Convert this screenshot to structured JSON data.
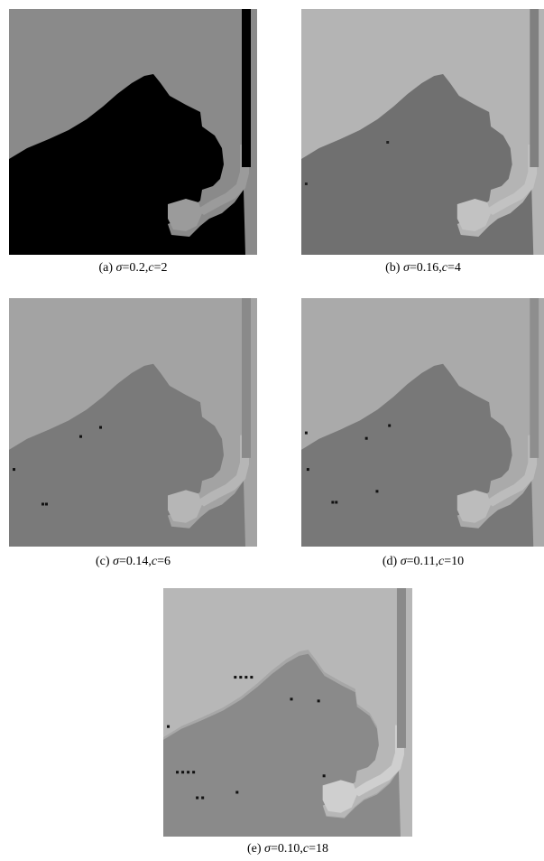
{
  "figure": {
    "panels": [
      {
        "id": "a",
        "label": "(a)",
        "sigma_symbol": "σ",
        "sigma_text": "=0.2,",
        "c_symbol": "c",
        "c_text": "=2",
        "colors": {
          "bg": "#8a8a8a",
          "fg": "#000000",
          "pot": "#9b9b9b",
          "pole": "#000000",
          "spots": "#000000"
        }
      },
      {
        "id": "b",
        "label": "(b)",
        "sigma_symbol": "σ",
        "sigma_text": "=0.16,",
        "c_symbol": "c",
        "c_text": "=4",
        "colors": {
          "bg": "#b4b4b4",
          "fg": "#707070",
          "pot": "#c2c2c2",
          "pole": "#808080",
          "spots": "#202020"
        }
      },
      {
        "id": "c",
        "label": "(c)",
        "sigma_symbol": "σ",
        "sigma_text": "=0.14,",
        "c_symbol": "c",
        "c_text": "=6",
        "colors": {
          "bg": "#a3a3a3",
          "fg": "#7a7a7a",
          "pot": "#b6b6b6",
          "pole": "#8a8a8a",
          "spots": "#111111"
        }
      },
      {
        "id": "d",
        "label": "(d)",
        "sigma_symbol": "σ",
        "sigma_text": "=0.11,",
        "c_symbol": "c",
        "c_text": "=10",
        "colors": {
          "bg": "#aaaaaa",
          "fg": "#787878",
          "pot": "#bcbcbc",
          "pole": "#8e8e8e",
          "spots": "#111111"
        }
      },
      {
        "id": "e",
        "label": "(e)",
        "sigma_symbol": "σ",
        "sigma_text": "=0.10,",
        "c_symbol": "c",
        "c_text": "=18",
        "colors": {
          "bg": "#b7b7b7",
          "fg": "#8a8a8a",
          "pot": "#cfcfcf",
          "pole": "#8a8a8a",
          "spots": "#111111",
          "halo": "#a7a7a7"
        }
      }
    ]
  }
}
